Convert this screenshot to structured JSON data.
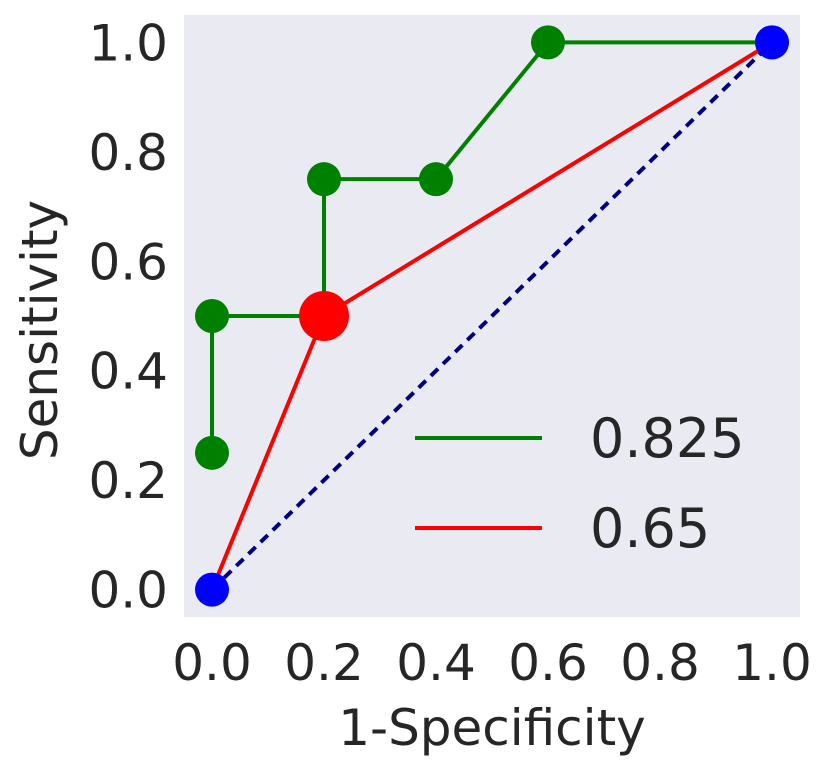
{
  "chart_data": {
    "type": "line",
    "title": "",
    "xlabel": "1-Specificity",
    "ylabel": "Sensitivity",
    "xlim": [
      -0.05,
      1.05
    ],
    "ylim": [
      -0.05,
      1.05
    ],
    "xticks": [
      "0.0",
      "0.2",
      "0.4",
      "0.6",
      "0.8",
      "1.0"
    ],
    "yticks": [
      "0.0",
      "0.2",
      "0.4",
      "0.6",
      "0.8",
      "1.0"
    ],
    "grid": false,
    "background": "#eaeaf2",
    "legend_position": "lower-right",
    "series": [
      {
        "name": "0.825",
        "color": "#008000",
        "x": [
          0.0,
          0.0,
          0.2,
          0.2,
          0.4,
          0.6,
          1.0
        ],
        "y": [
          0.25,
          0.5,
          0.5,
          0.75,
          0.75,
          1.0,
          1.0
        ]
      },
      {
        "name": "0.65",
        "color": "#ff0000",
        "x": [
          0.0,
          0.2,
          1.0
        ],
        "y": [
          0.0,
          0.5,
          1.0
        ]
      }
    ],
    "diagonal": {
      "color": "#000080",
      "style": "dashed",
      "x": [
        0.0,
        1.0
      ],
      "y": [
        0.0,
        1.0
      ]
    },
    "highlight_points": [
      {
        "x": 0.2,
        "y": 0.5,
        "color": "#ff0000"
      },
      {
        "x": 0.0,
        "y": 0.0,
        "color": "#0000ff"
      },
      {
        "x": 1.0,
        "y": 1.0,
        "color": "#0000ff"
      }
    ]
  }
}
